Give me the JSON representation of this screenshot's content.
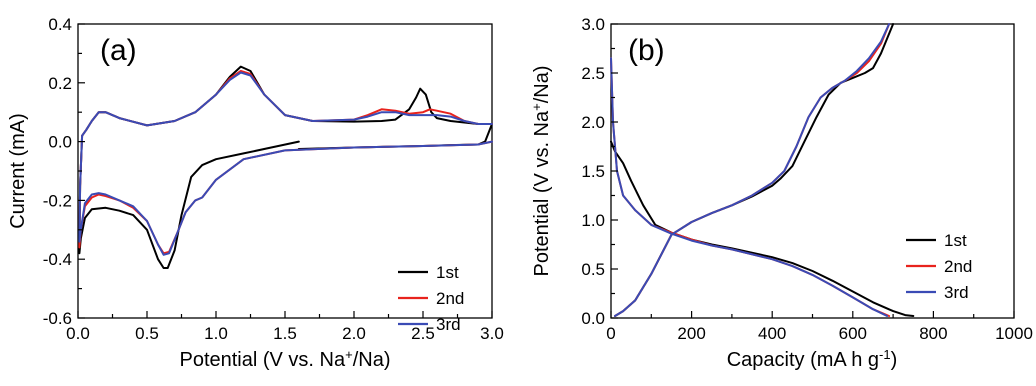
{
  "chart_data": [
    {
      "type": "line",
      "panel_label": "(a)",
      "xlabel": {
        "main": "Potential (V vs. Na",
        "sup": "+",
        "tail": "/Na)"
      },
      "ylabel": "Current (mA)",
      "xlim": [
        0,
        3
      ],
      "ylim": [
        -0.6,
        0.4
      ],
      "xticks": [
        0.0,
        0.5,
        1.0,
        1.5,
        2.0,
        2.5,
        3.0
      ],
      "xtick_labels": [
        "0.0",
        "0.5",
        "1.0",
        "1.5",
        "2.0",
        "2.5",
        "3.0"
      ],
      "yticks": [
        -0.6,
        -0.4,
        -0.2,
        0.0,
        0.2,
        0.4
      ],
      "ytick_labels": [
        "-0.6",
        "-0.4",
        "-0.2",
        "0.0",
        "0.2",
        "0.4"
      ],
      "legend": "bottom-right",
      "series": [
        {
          "name": "1st",
          "color": "#000000",
          "x": [
            1.6,
            1.4,
            1.2,
            1.0,
            0.9,
            0.82,
            0.75,
            0.7,
            0.65,
            0.62,
            0.58,
            0.5,
            0.4,
            0.3,
            0.2,
            0.1,
            0.05,
            0.02,
            0.01,
            0.015,
            0.03,
            0.06,
            0.1,
            0.15,
            0.2,
            0.3,
            0.5,
            0.7,
            0.85,
            1.0,
            1.1,
            1.18,
            1.25,
            1.35,
            1.5,
            1.7,
            2.0,
            2.2,
            2.3,
            2.4,
            2.45,
            2.48,
            2.52,
            2.56,
            2.6,
            2.7,
            2.8,
            2.9,
            2.95,
            3.0,
            2.95,
            2.9,
            2.7,
            2.5,
            2.0,
            1.6
          ],
          "y": [
            0.0,
            -0.02,
            -0.04,
            -0.06,
            -0.08,
            -0.12,
            -0.25,
            -0.37,
            -0.43,
            -0.43,
            -0.4,
            -0.3,
            -0.25,
            -0.235,
            -0.225,
            -0.23,
            -0.26,
            -0.33,
            -0.38,
            -0.15,
            0.02,
            0.04,
            0.07,
            0.1,
            0.1,
            0.08,
            0.055,
            0.07,
            0.1,
            0.16,
            0.22,
            0.255,
            0.24,
            0.16,
            0.09,
            0.07,
            0.068,
            0.07,
            0.075,
            0.11,
            0.15,
            0.18,
            0.16,
            0.1,
            0.08,
            0.07,
            0.065,
            0.06,
            0.06,
            0.06,
            0.0,
            -0.01,
            -0.012,
            -0.015,
            -0.02,
            -0.025
          ]
        },
        {
          "name": "2nd",
          "color": "#e8231d",
          "x": [
            3.0,
            2.9,
            2.5,
            2.0,
            1.5,
            1.2,
            1.0,
            0.9,
            0.85,
            0.78,
            0.72,
            0.66,
            0.62,
            0.58,
            0.5,
            0.4,
            0.3,
            0.2,
            0.15,
            0.1,
            0.05,
            0.02,
            0.01,
            0.015,
            0.03,
            0.06,
            0.1,
            0.15,
            0.2,
            0.3,
            0.5,
            0.7,
            0.85,
            1.0,
            1.1,
            1.18,
            1.25,
            1.35,
            1.5,
            1.7,
            2.0,
            2.1,
            2.2,
            2.3,
            2.4,
            2.5,
            2.55,
            2.6,
            2.65,
            2.7,
            2.8,
            2.9,
            3.0
          ],
          "y": [
            0.0,
            -0.01,
            -0.015,
            -0.02,
            -0.03,
            -0.06,
            -0.13,
            -0.19,
            -0.2,
            -0.24,
            -0.31,
            -0.375,
            -0.38,
            -0.35,
            -0.27,
            -0.225,
            -0.2,
            -0.185,
            -0.18,
            -0.19,
            -0.22,
            -0.3,
            -0.36,
            -0.15,
            0.02,
            0.04,
            0.07,
            0.1,
            0.1,
            0.08,
            0.055,
            0.07,
            0.1,
            0.16,
            0.215,
            0.24,
            0.23,
            0.16,
            0.09,
            0.07,
            0.075,
            0.09,
            0.11,
            0.105,
            0.095,
            0.1,
            0.11,
            0.105,
            0.1,
            0.095,
            0.07,
            0.06,
            0.06
          ]
        },
        {
          "name": "3rd",
          "color": "#3a4bb5",
          "x": [
            3.0,
            2.9,
            2.5,
            2.0,
            1.5,
            1.2,
            1.0,
            0.9,
            0.85,
            0.78,
            0.72,
            0.66,
            0.62,
            0.58,
            0.5,
            0.4,
            0.3,
            0.2,
            0.15,
            0.1,
            0.05,
            0.02,
            0.01,
            0.015,
            0.03,
            0.06,
            0.1,
            0.15,
            0.2,
            0.3,
            0.5,
            0.7,
            0.85,
            1.0,
            1.1,
            1.18,
            1.25,
            1.35,
            1.5,
            1.7,
            2.0,
            2.1,
            2.2,
            2.3,
            2.4,
            2.5,
            2.6,
            2.7,
            2.8,
            2.9,
            3.0
          ],
          "y": [
            0.0,
            -0.01,
            -0.015,
            -0.02,
            -0.03,
            -0.06,
            -0.13,
            -0.19,
            -0.2,
            -0.24,
            -0.31,
            -0.38,
            -0.385,
            -0.35,
            -0.27,
            -0.22,
            -0.2,
            -0.18,
            -0.175,
            -0.18,
            -0.21,
            -0.3,
            -0.34,
            -0.15,
            0.02,
            0.04,
            0.07,
            0.1,
            0.1,
            0.08,
            0.055,
            0.07,
            0.1,
            0.16,
            0.21,
            0.235,
            0.225,
            0.16,
            0.09,
            0.07,
            0.075,
            0.085,
            0.1,
            0.1,
            0.09,
            0.09,
            0.09,
            0.085,
            0.07,
            0.06,
            0.06
          ]
        }
      ]
    },
    {
      "type": "line",
      "panel_label": "(b)",
      "xlabel": {
        "main": "Capacity (mA h g",
        "sup": "-1",
        "tail": ")"
      },
      "ylabel": {
        "main": "Potential (V vs. Na",
        "sup": "+",
        "tail": "/Na)"
      },
      "xlim": [
        0,
        1000
      ],
      "ylim": [
        0,
        3.0
      ],
      "xticks": [
        0,
        200,
        400,
        600,
        800,
        1000
      ],
      "xtick_labels": [
        "0",
        "200",
        "400",
        "600",
        "800",
        "1000"
      ],
      "yticks": [
        0.0,
        0.5,
        1.0,
        1.5,
        2.0,
        2.5,
        3.0
      ],
      "ytick_labels": [
        "0.0",
        "0.5",
        "1.0",
        "1.5",
        "2.0",
        "2.5",
        "3.0"
      ],
      "legend": "bottom-right",
      "series": [
        {
          "name": "1st",
          "color": "#000000",
          "discharge": {
            "x": [
              0,
              10,
              30,
              50,
              80,
              110,
              150,
              200,
              250,
              300,
              400,
              450,
              500,
              550,
              600,
              650,
              700,
              730,
              750
            ],
            "y": [
              1.8,
              1.7,
              1.58,
              1.4,
              1.15,
              0.95,
              0.87,
              0.8,
              0.75,
              0.71,
              0.62,
              0.56,
              0.48,
              0.38,
              0.27,
              0.16,
              0.07,
              0.03,
              0.02
            ]
          },
          "charge": {
            "x": [
              10,
              30,
              60,
              100,
              150,
              200,
              250,
              300,
              350,
              400,
              420,
              450,
              480,
              510,
              540,
              570,
              600,
              630,
              650,
              670,
              700
            ],
            "y": [
              0.02,
              0.07,
              0.18,
              0.45,
              0.85,
              0.98,
              1.07,
              1.15,
              1.24,
              1.35,
              1.42,
              1.55,
              1.8,
              2.05,
              2.28,
              2.4,
              2.45,
              2.5,
              2.55,
              2.7,
              3.0
            ]
          }
        },
        {
          "name": "2nd",
          "color": "#e8231d",
          "discharge": {
            "x": [
              0,
              5,
              15,
              30,
              60,
              100,
              150,
              200,
              250,
              300,
              400,
              450,
              500,
              550,
              600,
              650,
              690
            ],
            "y": [
              2.65,
              2.0,
              1.5,
              1.25,
              1.1,
              0.95,
              0.87,
              0.8,
              0.74,
              0.7,
              0.6,
              0.53,
              0.44,
              0.33,
              0.21,
              0.09,
              0.02
            ]
          },
          "charge": {
            "x": [
              10,
              30,
              60,
              100,
              150,
              200,
              250,
              300,
              350,
              400,
              430,
              460,
              490,
              520,
              550,
              580,
              610,
              640,
              670,
              690
            ],
            "y": [
              0.02,
              0.07,
              0.18,
              0.45,
              0.85,
              0.98,
              1.07,
              1.15,
              1.25,
              1.38,
              1.5,
              1.75,
              2.05,
              2.25,
              2.35,
              2.42,
              2.5,
              2.62,
              2.8,
              3.0
            ]
          }
        },
        {
          "name": "3rd",
          "color": "#3a4bb5",
          "discharge": {
            "x": [
              0,
              5,
              15,
              30,
              60,
              100,
              150,
              200,
              250,
              300,
              400,
              450,
              500,
              550,
              600,
              650,
              685
            ],
            "y": [
              2.65,
              2.0,
              1.5,
              1.25,
              1.1,
              0.95,
              0.86,
              0.79,
              0.74,
              0.7,
              0.6,
              0.53,
              0.44,
              0.33,
              0.21,
              0.09,
              0.02
            ]
          },
          "charge": {
            "x": [
              10,
              30,
              60,
              100,
              150,
              200,
              250,
              300,
              350,
              400,
              430,
              460,
              490,
              520,
              550,
              580,
              610,
              640,
              670,
              690
            ],
            "y": [
              0.02,
              0.07,
              0.18,
              0.45,
              0.85,
              0.98,
              1.07,
              1.15,
              1.25,
              1.38,
              1.5,
              1.75,
              2.05,
              2.25,
              2.35,
              2.42,
              2.52,
              2.65,
              2.82,
              3.0
            ]
          }
        }
      ]
    }
  ]
}
